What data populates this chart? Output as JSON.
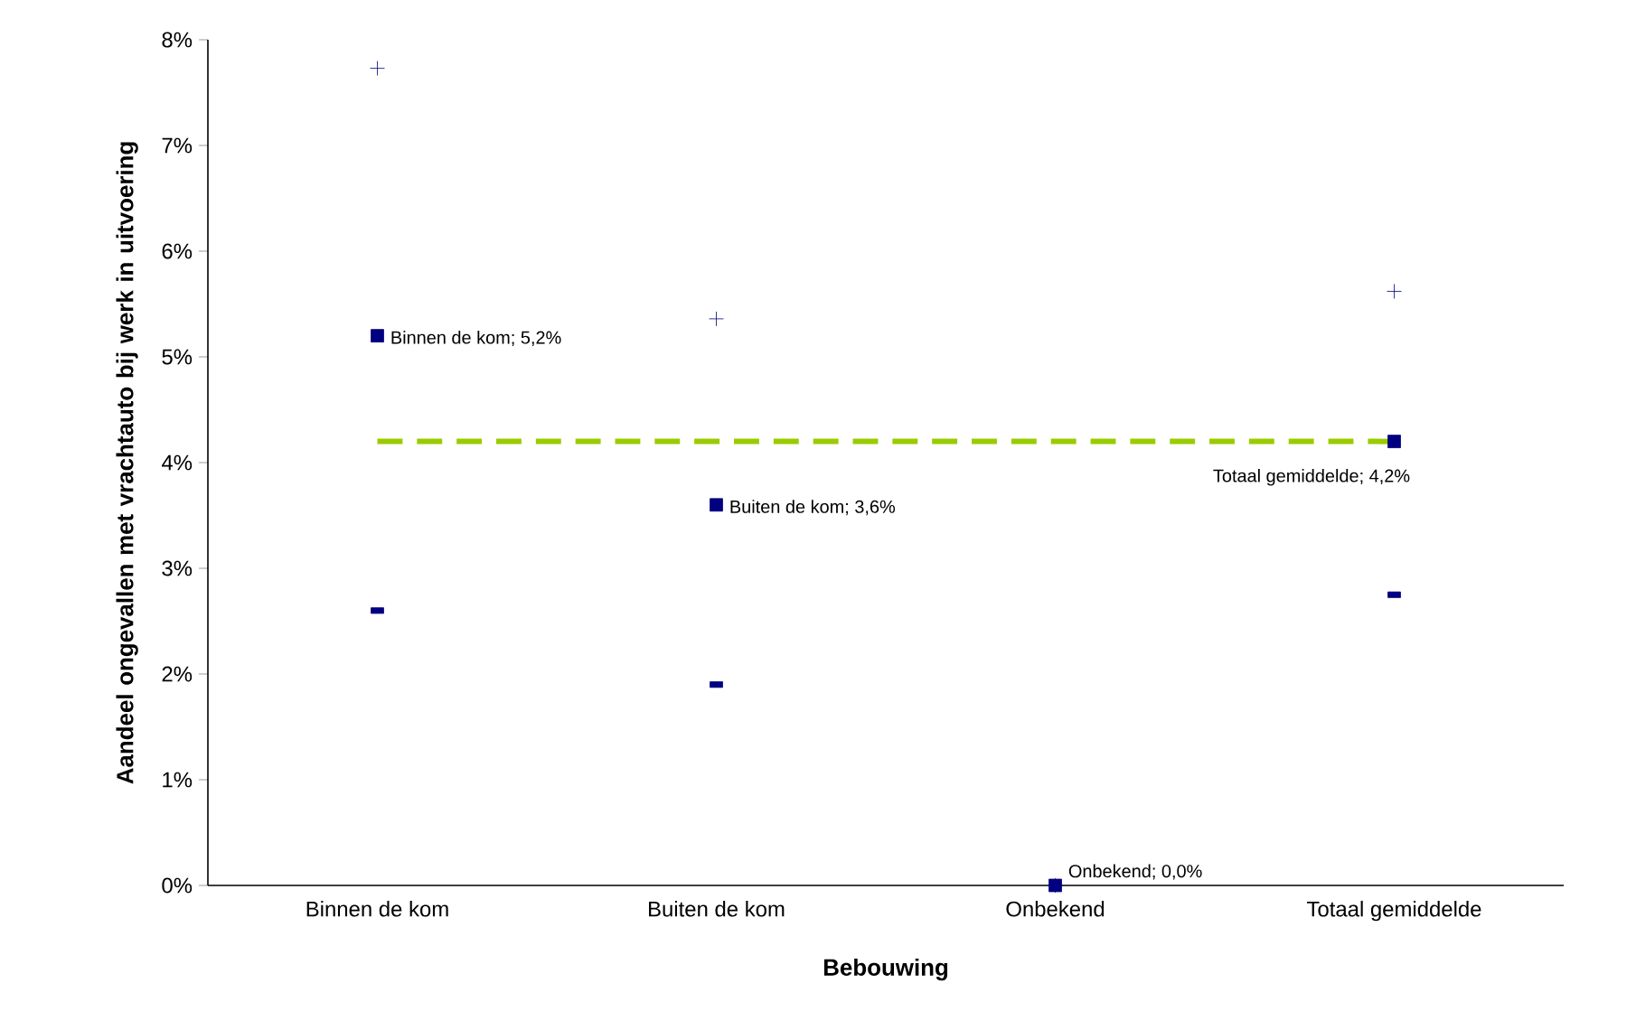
{
  "chart_data": {
    "type": "scatter",
    "xlabel": "Bebouwing",
    "ylabel": "Aandeel ongevallen met vrachtauto bij werk in uitvoering",
    "categories": [
      "Binnen de kom",
      "Buiten de kom",
      "Onbekend",
      "Totaal gemiddelde"
    ],
    "series": [
      {
        "type": "line",
        "color": "#99cc00",
        "line_style": "dashed",
        "marker": "none",
        "values": [
          4.2,
          4.2,
          4.2,
          4.2
        ]
      },
      {
        "color": "#000080",
        "marker": "cross",
        "values": [
          7.73,
          5.36,
          0,
          5.62
        ]
      },
      {
        "color": "#000080",
        "values": [
          2.6,
          1.9,
          null,
          2.75
        ]
      },
      {
        "color": "#000080",
        "marker": "square",
        "values": [
          5.2,
          3.6,
          0.0,
          4.2
        ],
        "value_labels": [
          "Binnen de kom; 5,2%",
          "Buiten de kom; 3,6%",
          "Onbekend; 0,0%",
          "Totaal gemiddelde; 4,2%"
        ]
      }
    ],
    "ylim": [
      0,
      8
    ],
    "yticks": [
      {
        "value": 0,
        "label": "0%"
      },
      {
        "value": 1,
        "label": "1%"
      },
      {
        "value": 2,
        "label": "2%"
      },
      {
        "value": 3,
        "label": "3%"
      },
      {
        "value": 4,
        "label": "4%"
      },
      {
        "value": 5,
        "label": "5%"
      },
      {
        "value": 6,
        "label": "6%"
      },
      {
        "value": 7,
        "label": "7%"
      },
      {
        "value": 8,
        "label": "8%"
      }
    ],
    "grid": false
  }
}
